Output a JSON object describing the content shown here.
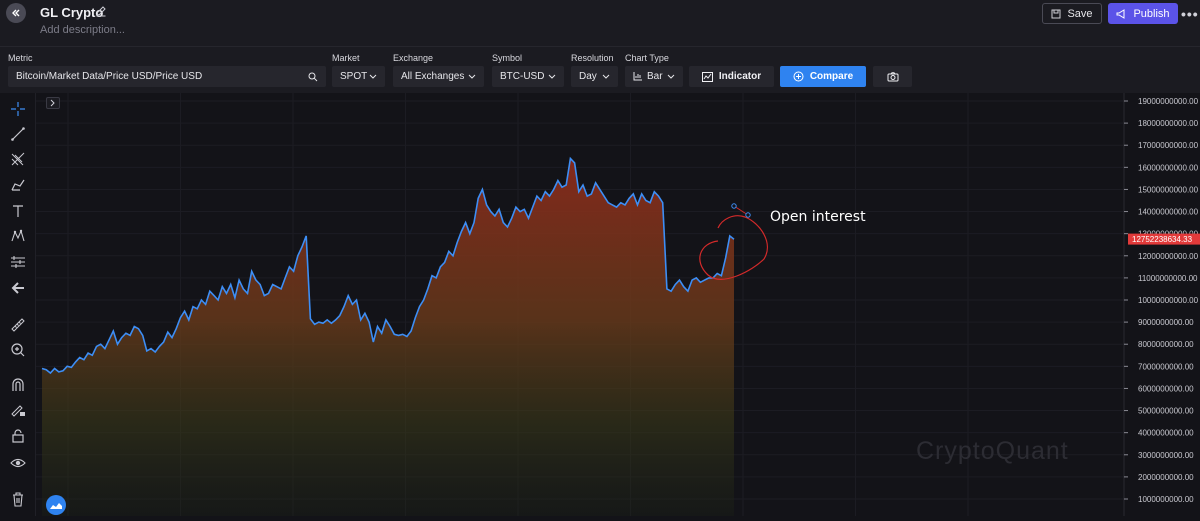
{
  "header": {
    "title": "GL Crypto",
    "description_placeholder": "Add description...",
    "save_label": "Save",
    "publish_label": "Publish",
    "more_label": "•••"
  },
  "controls": {
    "metric_label": "Metric",
    "metric_value": "Bitcoin/Market Data/Price USD/Price USD",
    "market_label": "Market",
    "market_value": "SPOT",
    "exchange_label": "Exchange",
    "exchange_value": "All Exchanges",
    "symbol_label": "Symbol",
    "symbol_value": "BTC-USD",
    "resolution_label": "Resolution",
    "resolution_value": "Day",
    "chart_type_label": "Chart Type",
    "chart_type_value": "Bar",
    "indicator_label": "Indicator",
    "compare_label": "Compare"
  },
  "toolbar_icons": [
    "crosshair-icon",
    "trend-line-icon",
    "pitchfork-icon",
    "brush-icon",
    "text-icon",
    "pattern-icon",
    "measure-icon",
    "arrow-left-icon",
    "ruler-icon",
    "zoom-in-icon",
    "magnet-icon",
    "pencil-lock-icon",
    "lock-icon",
    "eye-icon",
    "trash-icon"
  ],
  "annotation": {
    "text": "Open interest"
  },
  "watermark": "CryptoQuant",
  "colors": {
    "accent_blue": "#2f83f0",
    "publish_purple": "#5b53e8",
    "line": "#3d8ef5",
    "price_tag": "#e23a3a",
    "annotation_red": "#d42a2a"
  },
  "chart_data": {
    "type": "area",
    "ylim": [
      0,
      19000000000
    ],
    "y_ticks": [
      "1000000000.00",
      "2000000000.00",
      "3000000000.00",
      "4000000000.00",
      "5000000000.00",
      "6000000000.00",
      "7000000000.00",
      "8000000000.00",
      "9000000000.00",
      "10000000000.00",
      "11000000000.00",
      "12000000000.00",
      "13000000000.00",
      "14000000000.00",
      "15000000000.00",
      "16000000000.00",
      "17000000000.00",
      "18000000000.00",
      "19000000000.00"
    ],
    "last_value_label": "12752238634.33",
    "last_value": 12752238634.33,
    "series": [
      {
        "values": [
          6900000000,
          6850000000,
          6700000000,
          6900000000,
          6750000000,
          6800000000,
          7000000000,
          6950000000,
          7200000000,
          7400000000,
          7300000000,
          7600000000,
          7500000000,
          7900000000,
          8000000000,
          7800000000,
          8200000000,
          8600000000,
          8000000000,
          8300000000,
          8500000000,
          8400000000,
          8800000000,
          8700000000,
          8400000000,
          7700000000,
          7800000000,
          7650000000,
          7900000000,
          8100000000,
          8550000000,
          8300000000,
          8700000000,
          9200000000,
          9500000000,
          9100000000,
          9700000000,
          9600000000,
          10000000000,
          9800000000,
          10400000000,
          10200000000,
          10000000000,
          10600000000,
          10300000000,
          10700000000,
          10100000000,
          10900000000,
          10500000000,
          10300000000,
          11300000000,
          10900000000,
          10700000000,
          10200000000,
          10300000000,
          10700000000,
          10600000000,
          10500000000,
          11000000000,
          11500000000,
          11300000000,
          12000000000,
          12400000000,
          12900000000,
          9150000000,
          8900000000,
          9000000000,
          8950000000,
          9100000000,
          8950000000,
          9100000000,
          9300000000,
          9700000000,
          10200000000,
          9800000000,
          10000000000,
          9100000000,
          9400000000,
          9000000000,
          8100000000,
          8800000000,
          8500000000,
          9100000000,
          8800000000,
          8450000000,
          8400000000,
          8450000000,
          8350000000,
          8600000000,
          9200000000,
          9700000000,
          10000000000,
          10500000000,
          11100000000,
          11000000000,
          11500000000,
          11700000000,
          12200000000,
          12000000000,
          12600000000,
          13100000000,
          13500000000,
          13000000000,
          13500000000,
          14600000000,
          15000000000,
          14300000000,
          14000000000,
          13800000000,
          14100000000,
          13500000000,
          13300000000,
          13700000000,
          14200000000,
          14000000000,
          14100000000,
          13700000000,
          14200000000,
          14700000000,
          14500000000,
          14900000000,
          14700000000,
          15000000000,
          15400000000,
          15100000000,
          15200000000,
          16400000000,
          16200000000,
          14900000000,
          15200000000,
          14700000000,
          14800000000,
          15300000000,
          15000000000,
          14700000000,
          14400000000,
          14300000000,
          14200000000,
          14400000000,
          14300000000,
          14600000000,
          14800000000,
          14300000000,
          14800000000,
          14500000000,
          14400000000,
          14900000000,
          14700000000,
          14400000000,
          10500000000,
          10400000000,
          10700000000,
          10900000000,
          10600000000,
          10400000000,
          10900000000,
          11000000000,
          10800000000,
          10900000000,
          11000000000,
          11000000000,
          11200000000,
          11100000000,
          11900000000,
          12900000000,
          12750000000
        ]
      }
    ]
  }
}
